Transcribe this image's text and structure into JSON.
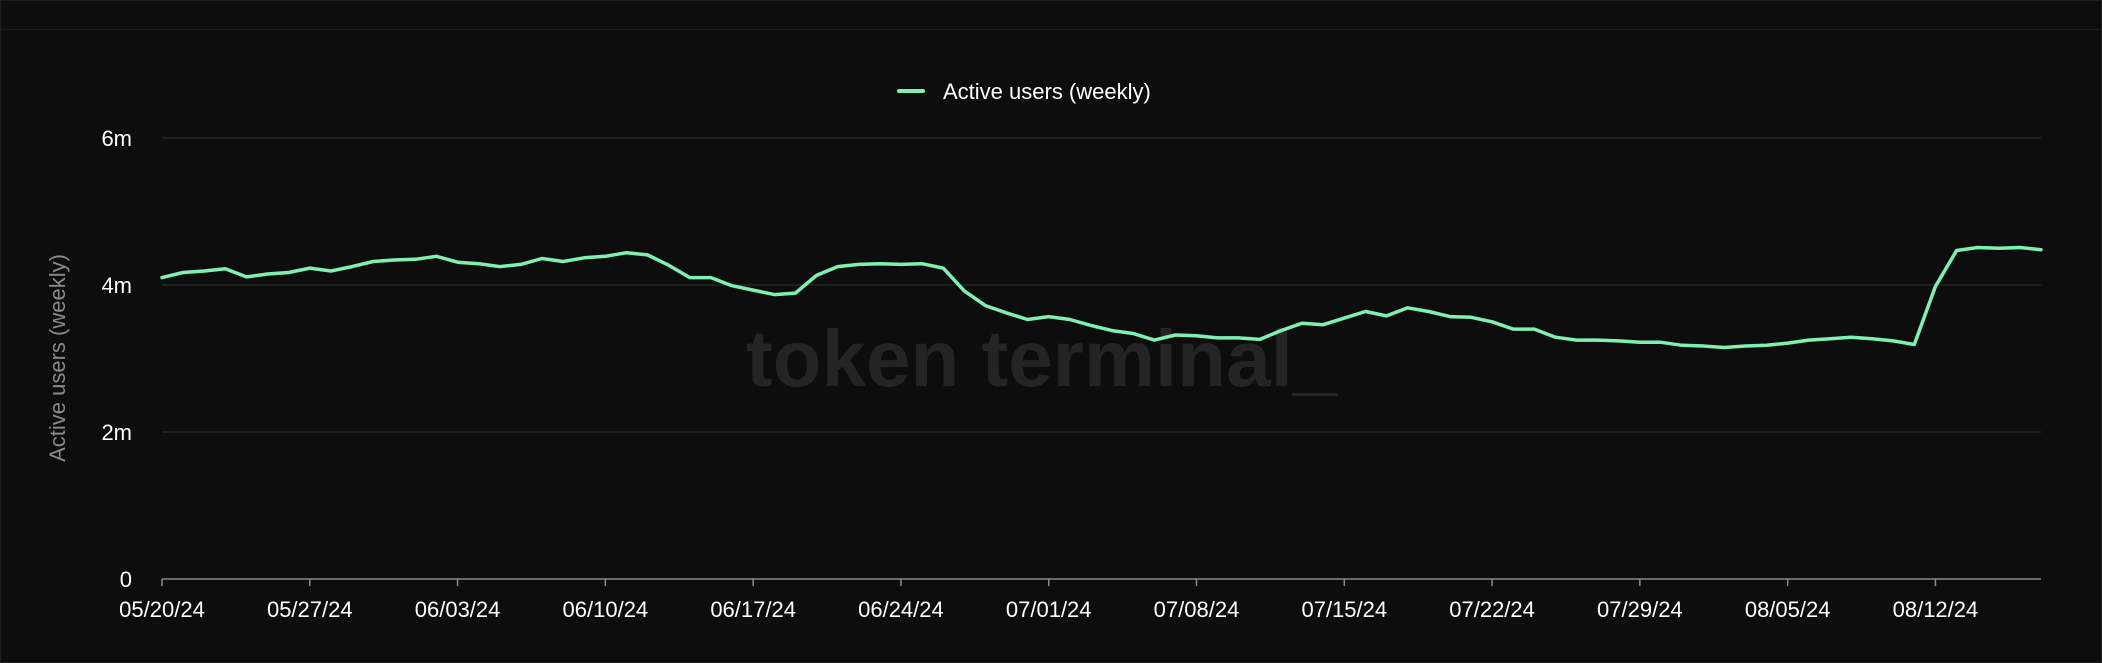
{
  "watermark": "token terminal_",
  "colors": {
    "background": "#0d0d0d",
    "series": "#7ff0b2",
    "grid": "#333333"
  },
  "chart_data": {
    "type": "line",
    "title": "",
    "xlabel": "",
    "ylabel": "Active users (weekly)",
    "ylim": [
      0,
      6000000
    ],
    "y_ticks": [
      {
        "value": 0,
        "label": "0"
      },
      {
        "value": 2000000,
        "label": "2m"
      },
      {
        "value": 4000000,
        "label": "4m"
      },
      {
        "value": 6000000,
        "label": "6m"
      }
    ],
    "x_start": "2024-05-20",
    "x_end": "2024-08-17",
    "x_tick_labels": [
      "05/20/24",
      "05/27/24",
      "06/03/24",
      "06/10/24",
      "06/17/24",
      "06/24/24",
      "07/01/24",
      "07/08/24",
      "07/15/24",
      "07/22/24",
      "07/29/24",
      "08/05/24",
      "08/12/24"
    ],
    "grid": "horizontal",
    "legend": "top-center",
    "series": [
      {
        "name": "Active users (weekly)",
        "values": [
          [
            "2024-05-20",
            4100000
          ],
          [
            "2024-05-21",
            4170000
          ],
          [
            "2024-05-22",
            4190000
          ],
          [
            "2024-05-23",
            4220000
          ],
          [
            "2024-05-24",
            4110000
          ],
          [
            "2024-05-25",
            4150000
          ],
          [
            "2024-05-26",
            4170000
          ],
          [
            "2024-05-27",
            4230000
          ],
          [
            "2024-05-28",
            4190000
          ],
          [
            "2024-05-29",
            4250000
          ],
          [
            "2024-05-30",
            4320000
          ],
          [
            "2024-05-31",
            4340000
          ],
          [
            "2024-06-01",
            4350000
          ],
          [
            "2024-06-02",
            4390000
          ],
          [
            "2024-06-03",
            4310000
          ],
          [
            "2024-06-04",
            4290000
          ],
          [
            "2024-06-05",
            4250000
          ],
          [
            "2024-06-06",
            4280000
          ],
          [
            "2024-06-07",
            4360000
          ],
          [
            "2024-06-08",
            4320000
          ],
          [
            "2024-06-09",
            4370000
          ],
          [
            "2024-06-10",
            4390000
          ],
          [
            "2024-06-11",
            4440000
          ],
          [
            "2024-06-12",
            4410000
          ],
          [
            "2024-06-13",
            4270000
          ],
          [
            "2024-06-14",
            4100000
          ],
          [
            "2024-06-15",
            4100000
          ],
          [
            "2024-06-16",
            3990000
          ],
          [
            "2024-06-17",
            3930000
          ],
          [
            "2024-06-18",
            3870000
          ],
          [
            "2024-06-19",
            3890000
          ],
          [
            "2024-06-20",
            4130000
          ],
          [
            "2024-06-21",
            4250000
          ],
          [
            "2024-06-22",
            4280000
          ],
          [
            "2024-06-23",
            4290000
          ],
          [
            "2024-06-24",
            4280000
          ],
          [
            "2024-06-25",
            4290000
          ],
          [
            "2024-06-26",
            4230000
          ],
          [
            "2024-06-27",
            3920000
          ],
          [
            "2024-06-28",
            3720000
          ],
          [
            "2024-06-29",
            3620000
          ],
          [
            "2024-06-30",
            3530000
          ],
          [
            "2024-07-01",
            3570000
          ],
          [
            "2024-07-02",
            3530000
          ],
          [
            "2024-07-03",
            3450000
          ],
          [
            "2024-07-04",
            3380000
          ],
          [
            "2024-07-05",
            3340000
          ],
          [
            "2024-07-06",
            3250000
          ],
          [
            "2024-07-07",
            3320000
          ],
          [
            "2024-07-08",
            3310000
          ],
          [
            "2024-07-09",
            3280000
          ],
          [
            "2024-07-10",
            3280000
          ],
          [
            "2024-07-11",
            3260000
          ],
          [
            "2024-07-12",
            3380000
          ],
          [
            "2024-07-13",
            3480000
          ],
          [
            "2024-07-14",
            3460000
          ],
          [
            "2024-07-15",
            3550000
          ],
          [
            "2024-07-16",
            3640000
          ],
          [
            "2024-07-17",
            3580000
          ],
          [
            "2024-07-18",
            3690000
          ],
          [
            "2024-07-19",
            3640000
          ],
          [
            "2024-07-20",
            3570000
          ],
          [
            "2024-07-21",
            3560000
          ],
          [
            "2024-07-22",
            3500000
          ],
          [
            "2024-07-23",
            3400000
          ],
          [
            "2024-07-24",
            3400000
          ],
          [
            "2024-07-25",
            3290000
          ],
          [
            "2024-07-26",
            3250000
          ],
          [
            "2024-07-27",
            3250000
          ],
          [
            "2024-07-28",
            3240000
          ],
          [
            "2024-07-29",
            3220000
          ],
          [
            "2024-07-30",
            3220000
          ],
          [
            "2024-07-31",
            3180000
          ],
          [
            "2024-08-01",
            3170000
          ],
          [
            "2024-08-02",
            3150000
          ],
          [
            "2024-08-03",
            3170000
          ],
          [
            "2024-08-04",
            3180000
          ],
          [
            "2024-08-05",
            3210000
          ],
          [
            "2024-08-06",
            3250000
          ],
          [
            "2024-08-07",
            3270000
          ],
          [
            "2024-08-08",
            3290000
          ],
          [
            "2024-08-09",
            3270000
          ],
          [
            "2024-08-10",
            3240000
          ],
          [
            "2024-08-11",
            3190000
          ],
          [
            "2024-08-12",
            3980000
          ],
          [
            "2024-08-13",
            4470000
          ],
          [
            "2024-08-14",
            4510000
          ],
          [
            "2024-08-15",
            4500000
          ],
          [
            "2024-08-16",
            4510000
          ],
          [
            "2024-08-17",
            4480000
          ]
        ]
      }
    ]
  }
}
